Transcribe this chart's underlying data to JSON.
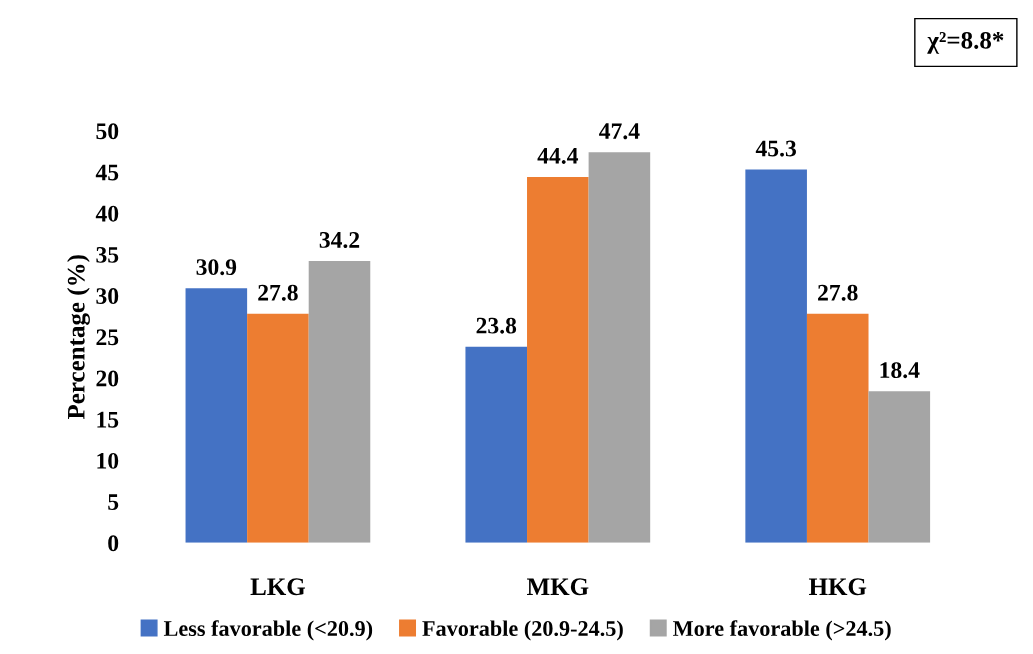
{
  "chart_data": {
    "type": "bar",
    "ylabel": "Percentage (%)",
    "categories": [
      "LKG",
      "MKG",
      "HKG"
    ],
    "series": [
      {
        "name": "Less favorable (<20.9)",
        "color": "#4472c4",
        "values": [
          30.9,
          23.8,
          45.3
        ]
      },
      {
        "name": "Favorable (20.9-24.5)",
        "color": "#ed7d31",
        "values": [
          27.8,
          44.4,
          27.8
        ]
      },
      {
        "name": "More favorable (>24.5)",
        "color": "#a5a5a5",
        "values": [
          34.2,
          47.4,
          18.4
        ]
      }
    ],
    "ylim": [
      0,
      50
    ],
    "yticks": [
      0,
      5,
      10,
      15,
      20,
      25,
      30,
      35,
      40,
      45,
      50
    ],
    "data_labels": true,
    "grid": false,
    "legend": "bottom",
    "annotations": [
      "χ²=8.8*"
    ]
  }
}
